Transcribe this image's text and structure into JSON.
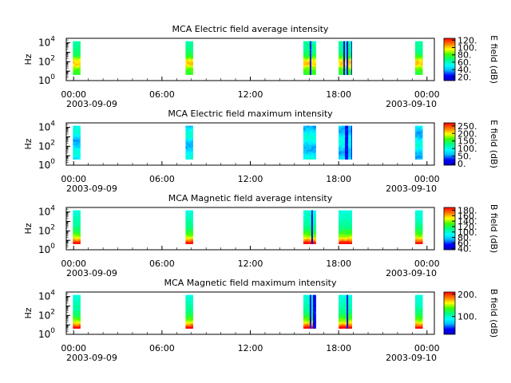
{
  "figure": {
    "x_tick_labels": [
      "00:00",
      "06:00",
      "12:00",
      "18:00",
      "00:00"
    ],
    "start_date": "2003-09-09",
    "end_date": "2003-09-10",
    "ylabel": "Hz"
  },
  "chart_data": [
    {
      "type": "heatmap",
      "title": "MCA  Electric field average intensity",
      "ylabel": "Hz",
      "yscale": "log",
      "ylim": [
        1,
        30000
      ],
      "y_tick_labels": [
        "10^0",
        "10^2",
        "10^4"
      ],
      "xlim_hours": [
        -0.5,
        24.5
      ],
      "colorbar_label": "E field (dB)",
      "colorbar_range": [
        10,
        125
      ],
      "colorbar_ticks": [
        "20.",
        "40.",
        "60.",
        "80.",
        "100.",
        "120."
      ],
      "data_intervals_hours": [
        [
          -0.05,
          0.45
        ],
        [
          7.6,
          8.1
        ],
        [
          15.6,
          16.45
        ],
        [
          18.0,
          18.9
        ],
        [
          23.2,
          23.7
        ]
      ],
      "palette": "low"
    },
    {
      "type": "heatmap",
      "title": "MCA  Electric field maximum intensity",
      "ylabel": "Hz",
      "yscale": "log",
      "ylim": [
        1,
        30000
      ],
      "y_tick_labels": [
        "10^0",
        "10^2",
        "10^4"
      ],
      "xlim_hours": [
        -0.5,
        24.5
      ],
      "colorbar_label": "E field (dB)",
      "colorbar_range": [
        -10,
        270
      ],
      "colorbar_ticks": [
        "0.",
        "50.",
        "100.",
        "150.",
        "200.",
        "250."
      ],
      "data_intervals_hours": [
        [
          -0.05,
          0.45
        ],
        [
          7.6,
          8.1
        ],
        [
          15.6,
          16.45
        ],
        [
          18.0,
          18.9
        ],
        [
          23.2,
          23.7
        ]
      ],
      "palette": "blue"
    },
    {
      "type": "heatmap",
      "title": "MCA  Magnetic field average intensity",
      "ylabel": "Hz",
      "yscale": "log",
      "ylim": [
        1,
        30000
      ],
      "y_tick_labels": [
        "10^0",
        "10^2",
        "10^4"
      ],
      "xlim_hours": [
        -0.5,
        24.5
      ],
      "colorbar_label": "B field (dB)",
      "colorbar_range": [
        35,
        190
      ],
      "colorbar_ticks": [
        "40.",
        "60.",
        "80.",
        "100.",
        "120.",
        "140.",
        "160.",
        "180."
      ],
      "data_intervals_hours": [
        [
          -0.05,
          0.45
        ],
        [
          7.6,
          8.1
        ],
        [
          15.6,
          16.45
        ],
        [
          18.0,
          18.9
        ],
        [
          23.2,
          23.7
        ]
      ],
      "palette": "high"
    },
    {
      "type": "heatmap",
      "title": "MCA  Magnetic field maximum intensity",
      "ylabel": "Hz",
      "yscale": "log",
      "ylim": [
        1,
        30000
      ],
      "y_tick_labels": [
        "10^0",
        "10^2",
        "10^4"
      ],
      "xlim_hours": [
        -0.5,
        24.5
      ],
      "colorbar_label": "B field (dB)",
      "colorbar_range": [
        20,
        210
      ],
      "colorbar_ticks": [
        "100.",
        "200."
      ],
      "data_intervals_hours": [
        [
          -0.05,
          0.45
        ],
        [
          7.6,
          8.1
        ],
        [
          15.6,
          16.45
        ],
        [
          18.0,
          18.9
        ],
        [
          23.2,
          23.7
        ]
      ],
      "palette": "high"
    }
  ]
}
